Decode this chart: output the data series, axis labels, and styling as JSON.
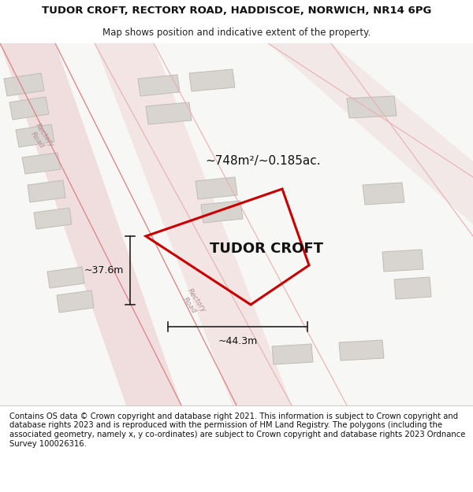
{
  "title": "TUDOR CROFT, RECTORY ROAD, HADDISCOE, NORWICH, NR14 6PG",
  "subtitle": "Map shows position and indicative extent of the property.",
  "property_label": "TUDOR CROFT",
  "area_label": "~748m²/~0.185ac.",
  "dim_width": "~44.3m",
  "dim_height": "~37.6m",
  "footer": "Contains OS data © Crown copyright and database right 2021. This information is subject to Crown copyright and database rights 2023 and is reproduced with the permission of HM Land Registry. The polygons (including the associated geometry, namely x, y co-ordinates) are subject to Crown copyright and database rights 2023 Ordnance Survey 100026316.",
  "map_bg": "#f7f7f5",
  "road_fill": "#f0dede",
  "road_line": "#e08080",
  "road_line2": "#e8b0b0",
  "building_color": "#d8d5d0",
  "building_edge": "#c0bcb5",
  "property_edge": "#cc0000",
  "property_lw": 2.2,
  "dim_color": "#222222",
  "label_road": "#b09090",
  "title_fontsize": 9.5,
  "subtitle_fontsize": 8.5,
  "footer_fontsize": 7.2,
  "prop_label_fontsize": 13,
  "area_label_fontsize": 11
}
